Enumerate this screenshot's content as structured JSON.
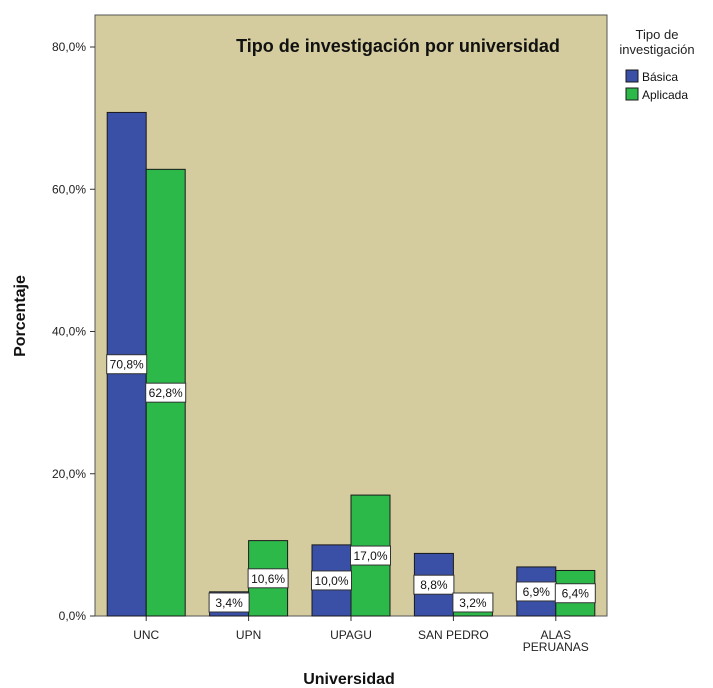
{
  "chart_data": {
    "type": "bar",
    "title": "Tipo de investigación por universidad",
    "xlabel": "Universidad",
    "ylabel": "Porcentaje",
    "categories": [
      [
        "UNC"
      ],
      [
        "UPN"
      ],
      [
        "UPAGU"
      ],
      [
        "SAN PEDRO"
      ],
      [
        "ALAS",
        "PERUANAS"
      ]
    ],
    "series": [
      {
        "name": "Básica",
        "color": "#3a4fa6",
        "values": [
          70.8,
          3.4,
          10.0,
          8.8,
          6.9
        ],
        "labels": [
          "70,8%",
          "3,4%",
          "10,0%",
          "8,8%",
          "6,9%"
        ]
      },
      {
        "name": "Aplicada",
        "color": "#2db84a",
        "values": [
          62.8,
          10.6,
          17.0,
          3.2,
          6.4
        ],
        "labels": [
          "62,8%",
          "10,6%",
          "17,0%",
          "3,2%",
          "6,4%"
        ]
      }
    ],
    "ylim": [
      0,
      80
    ],
    "yticks": [
      0,
      20,
      40,
      60,
      80
    ],
    "ytick_labels": [
      "0,0%",
      "20,0%",
      "40,0%",
      "60,0%",
      "80,0%"
    ],
    "legend": {
      "title_lines": [
        "Tipo de",
        "investigación"
      ],
      "placement": "right"
    },
    "background": "#d4cc9e",
    "grid": false
  }
}
